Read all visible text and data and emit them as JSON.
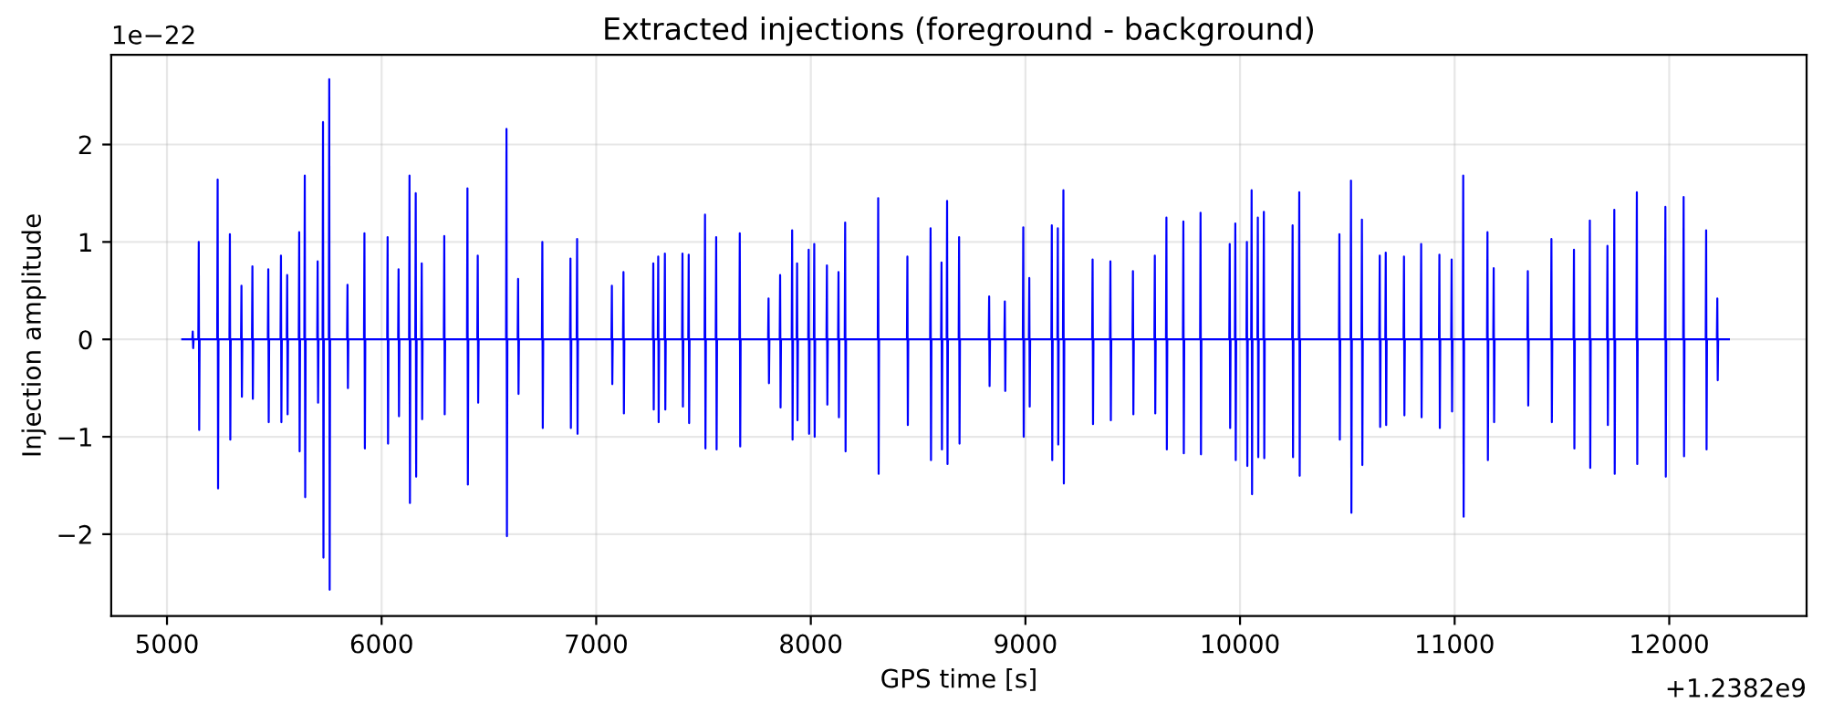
{
  "chart_data": {
    "type": "line",
    "title": "Extracted injections (foreground - background)",
    "xlabel": "GPS time [s]",
    "ylabel": "Injection amplitude",
    "annotations": [
      "1e−22",
      "+1.2382e9"
    ],
    "xlim": [
      4740,
      12640
    ],
    "xticks": [
      5000,
      6000,
      7000,
      8000,
      9000,
      10000,
      11000,
      12000
    ],
    "ylim": [
      -2.84,
      2.92
    ],
    "yticks": [
      {
        "value": -2,
        "label": "−2"
      },
      {
        "value": -1,
        "label": "−1"
      },
      0,
      1,
      2
    ],
    "grid": true,
    "marker": "none",
    "line_style": "solid",
    "series": [
      {
        "color": "#0000ff",
        "x": [
          5071,
          5118,
          5120,
          5122,
          5124,
          5146,
          5148,
          5150,
          5152,
          5234,
          5236,
          5238,
          5240,
          5291,
          5293,
          5295,
          5297,
          5345,
          5347,
          5349,
          5351,
          5396,
          5398,
          5400,
          5402,
          5470,
          5472,
          5474,
          5476,
          5529,
          5531,
          5533,
          5535,
          5558,
          5560,
          5562,
          5564,
          5614,
          5616,
          5618,
          5620,
          5640,
          5642,
          5644,
          5646,
          5700,
          5702,
          5704,
          5706,
          5725,
          5727,
          5729,
          5731,
          5754,
          5756,
          5758,
          5760,
          5839,
          5841,
          5843,
          5845,
          5918,
          5920,
          5922,
          5924,
          6026,
          6028,
          6030,
          6032,
          6077,
          6079,
          6081,
          6083,
          6128,
          6130,
          6132,
          6134,
          6157,
          6159,
          6161,
          6163,
          6185,
          6187,
          6189,
          6191,
          6290,
          6292,
          6294,
          6296,
          6398,
          6400,
          6402,
          6404,
          6446,
          6448,
          6450,
          6452,
          6580,
          6582,
          6584,
          6586,
          6634,
          6636,
          6638,
          6640,
          6747,
          6749,
          6751,
          6753,
          6878,
          6880,
          6882,
          6884,
          6909,
          6911,
          6913,
          6915,
          7071,
          7073,
          7075,
          7077,
          7125,
          7127,
          7129,
          7131,
          7264,
          7266,
          7268,
          7270,
          7287,
          7289,
          7291,
          7293,
          7318,
          7320,
          7322,
          7324,
          7400,
          7402,
          7404,
          7406,
          7429,
          7431,
          7433,
          7435,
          7505,
          7507,
          7509,
          7511,
          7557,
          7559,
          7561,
          7563,
          7667,
          7669,
          7671,
          7673,
          7801,
          7803,
          7805,
          7807,
          7855,
          7857,
          7859,
          7861,
          7911,
          7913,
          7915,
          7917,
          7934,
          7936,
          7938,
          7940,
          7988,
          7990,
          7992,
          7994,
          8014,
          8016,
          8018,
          8020,
          8073,
          8075,
          8077,
          8079,
          8127,
          8129,
          8131,
          8133,
          8158,
          8160,
          8162,
          8164,
          8312,
          8314,
          8316,
          8318,
          8448,
          8450,
          8452,
          8454,
          8556,
          8558,
          8560,
          8562,
          8607,
          8609,
          8611,
          8613,
          8633,
          8635,
          8637,
          8639,
          8689,
          8691,
          8693,
          8695,
          8829,
          8831,
          8833,
          8835,
          8902,
          8904,
          8906,
          8908,
          8988,
          8990,
          8992,
          8994,
          9016,
          9018,
          9020,
          9022,
          9121,
          9123,
          9125,
          9127,
          9149,
          9151,
          9153,
          9155,
          9175,
          9177,
          9179,
          9181,
          9311,
          9313,
          9315,
          9317,
          9394,
          9396,
          9398,
          9400,
          9499,
          9501,
          9503,
          9505,
          9601,
          9603,
          9605,
          9607,
          9655,
          9657,
          9659,
          9661,
          9734,
          9736,
          9738,
          9740,
          9814,
          9816,
          9818,
          9820,
          9950,
          9952,
          9954,
          9956,
          9976,
          9978,
          9980,
          9982,
          10030,
          10032,
          10034,
          10036,
          10052,
          10054,
          10056,
          10058,
          10081,
          10083,
          10085,
          10087,
          10109,
          10111,
          10113,
          10115,
          10243,
          10245,
          10247,
          10249,
          10274,
          10276,
          10278,
          10280,
          10461,
          10463,
          10465,
          10467,
          10515,
          10517,
          10519,
          10521,
          10566,
          10568,
          10570,
          10572,
          10649,
          10651,
          10653,
          10655,
          10677,
          10679,
          10681,
          10683,
          10762,
          10764,
          10766,
          10768,
          10842,
          10844,
          10846,
          10848,
          10927,
          10929,
          10931,
          10933,
          10984,
          10986,
          10988,
          10990,
          11038,
          11040,
          11042,
          11044,
          11151,
          11153,
          11155,
          11157,
          11180,
          11182,
          11184,
          11186,
          11339,
          11341,
          11343,
          11345,
          11449,
          11451,
          11453,
          11455,
          11554,
          11556,
          11558,
          11560,
          11628,
          11630,
          11632,
          11634,
          11710,
          11712,
          11714,
          11716,
          11742,
          11744,
          11746,
          11748,
          11847,
          11849,
          11851,
          11853,
          11980,
          11982,
          11984,
          11986,
          12065,
          12067,
          12069,
          12071,
          12170,
          12172,
          12174,
          12176,
          12222,
          12224,
          12226,
          12228,
          12278
        ],
        "values": [
          0,
          0,
          0.08,
          -0.09,
          0,
          0,
          1.0,
          -0.93,
          0,
          0,
          1.64,
          -1.53,
          0,
          0,
          1.08,
          -1.03,
          0,
          0,
          0.55,
          -0.59,
          0,
          0,
          0.75,
          -0.61,
          0,
          0,
          0.72,
          -0.85,
          0,
          0,
          0.86,
          -0.85,
          0,
          0,
          0.66,
          -0.77,
          0,
          0,
          1.1,
          -1.15,
          0,
          0,
          1.68,
          -1.62,
          0,
          0,
          0.8,
          -0.65,
          0,
          0,
          2.23,
          -2.24,
          0,
          0,
          2.67,
          -2.57,
          0,
          0,
          0.56,
          -0.5,
          0,
          0,
          1.09,
          -1.12,
          0,
          0,
          1.05,
          -1.07,
          0,
          0,
          0.72,
          -0.79,
          0,
          0,
          1.68,
          -1.68,
          0,
          0,
          1.5,
          -1.41,
          0,
          0,
          0.78,
          -0.82,
          0,
          0,
          1.06,
          -0.77,
          0,
          0,
          1.55,
          -1.49,
          0,
          0,
          0.86,
          -0.65,
          0,
          0,
          2.16,
          -2.02,
          0,
          0,
          0.62,
          -0.56,
          0,
          0,
          1.0,
          -0.91,
          0,
          0,
          0.83,
          -0.91,
          0,
          0,
          1.03,
          -0.97,
          0,
          0,
          0.55,
          -0.46,
          0,
          0,
          0.69,
          -0.76,
          0,
          0,
          0.78,
          -0.72,
          0,
          0,
          0.85,
          -0.85,
          0,
          0,
          0.88,
          -0.72,
          0,
          0,
          0.88,
          -0.69,
          0,
          0,
          0.87,
          -0.86,
          0,
          0,
          1.28,
          -1.12,
          0,
          0,
          1.05,
          -1.13,
          0,
          0,
          1.09,
          -1.1,
          0,
          0,
          0.42,
          -0.45,
          0,
          0,
          0.66,
          -0.7,
          0,
          0,
          1.12,
          -1.03,
          0,
          0,
          0.78,
          -0.83,
          0,
          0,
          0.92,
          -0.97,
          0,
          0,
          0.98,
          -1.0,
          0,
          0,
          0.76,
          -0.67,
          0,
          0,
          0.69,
          -0.8,
          0,
          0,
          1.2,
          -1.15,
          0,
          0,
          1.45,
          -1.38,
          0,
          0,
          0.85,
          -0.88,
          0,
          0,
          1.14,
          -1.24,
          0,
          0,
          0.79,
          -1.13,
          0,
          0,
          1.42,
          -1.28,
          0,
          0,
          1.05,
          -1.07,
          0,
          0,
          0.44,
          -0.48,
          0,
          0,
          0.39,
          -0.53,
          0,
          0,
          1.15,
          -1.0,
          0,
          0,
          0.63,
          -0.69,
          0,
          0,
          1.17,
          -1.24,
          0,
          0,
          1.14,
          -1.08,
          0,
          0,
          1.53,
          -1.48,
          0,
          0,
          0.82,
          -0.87,
          0,
          0,
          0.8,
          -0.83,
          0,
          0,
          0.7,
          -0.77,
          0,
          0,
          0.86,
          -0.76,
          0,
          0,
          1.25,
          -1.13,
          0,
          0,
          1.21,
          -1.17,
          0,
          0,
          1.3,
          -1.18,
          0,
          0,
          0.98,
          -0.91,
          0,
          0,
          1.19,
          -1.24,
          0,
          0,
          1.0,
          -1.3,
          0,
          0,
          1.53,
          -1.59,
          0,
          0,
          1.25,
          -1.21,
          0,
          0,
          1.31,
          -1.22,
          0,
          0,
          1.17,
          -1.21,
          0,
          0,
          1.51,
          -1.4,
          0,
          0,
          1.08,
          -1.03,
          0,
          0,
          1.63,
          -1.78,
          0,
          0,
          1.23,
          -1.29,
          0,
          0,
          0.86,
          -0.9,
          0,
          0,
          0.89,
          -0.88,
          0,
          0,
          0.85,
          -0.78,
          0,
          0,
          0.98,
          -0.8,
          0,
          0,
          0.87,
          -0.91,
          0,
          0,
          0.82,
          -0.74,
          0,
          0,
          1.68,
          -1.82,
          0,
          0,
          1.1,
          -1.24,
          0,
          0,
          0.73,
          -0.85,
          0,
          0,
          0.7,
          -0.68,
          0,
          0,
          1.03,
          -0.85,
          0,
          0,
          0.92,
          -1.12,
          0,
          0,
          1.22,
          -1.32,
          0,
          0,
          0.96,
          -0.88,
          0,
          0,
          1.33,
          -1.38,
          0,
          0,
          1.51,
          -1.28,
          0,
          0,
          1.36,
          -1.41,
          0,
          0,
          1.46,
          -1.2,
          0,
          0,
          1.12,
          -1.13,
          0,
          0,
          0.42,
          -0.42,
          0,
          0
        ]
      }
    ]
  }
}
